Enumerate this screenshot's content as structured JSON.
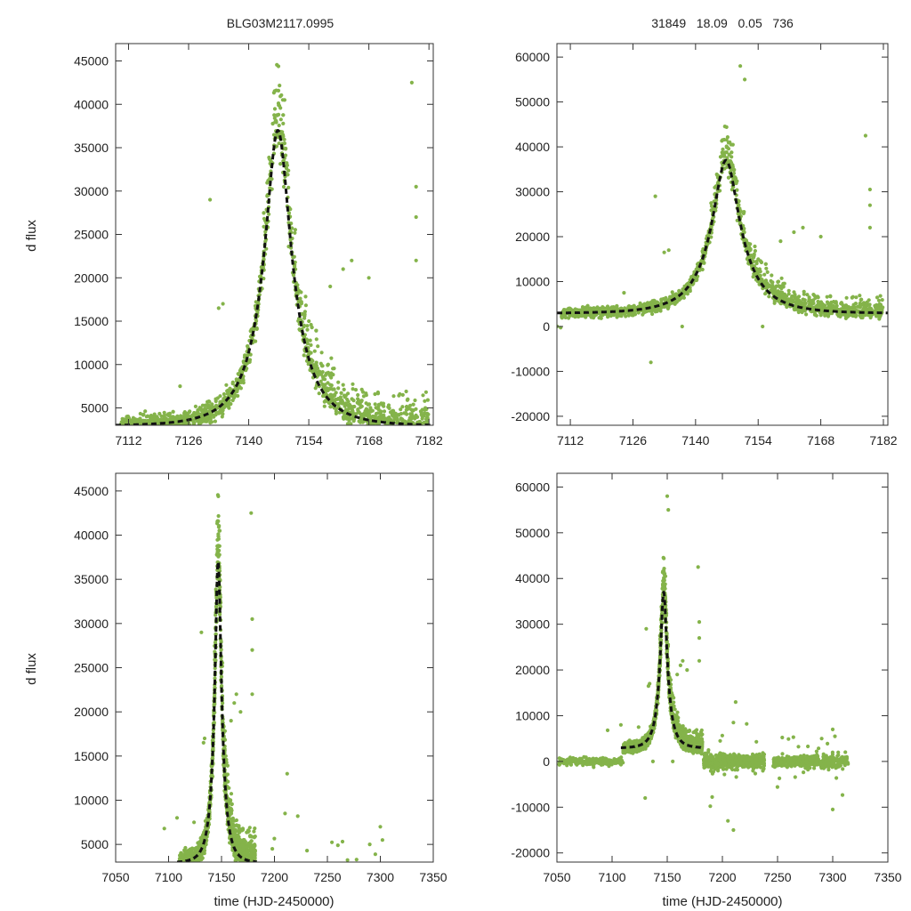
{
  "figure": {
    "title_left": "BLG03M2117.0995",
    "title_right": "31849   18.09   0.05   736",
    "ylabel": "d flux",
    "xlabel": "time (HJD-2450000)",
    "colors": {
      "data": "#84b34a",
      "model": "#111111",
      "frame": "#333333"
    }
  },
  "chart_data": [
    {
      "type": "scatter",
      "panel": "top-left",
      "title": "BLG03M2117.0995",
      "xlabel": "",
      "ylabel": "d flux",
      "xlim": [
        7109,
        7183
      ],
      "ylim": [
        3000,
        47000
      ],
      "xticks": [
        7112,
        7126,
        7140,
        7154,
        7168,
        7182
      ],
      "yticks": [
        5000,
        10000,
        15000,
        20000,
        25000,
        30000,
        35000,
        40000,
        45000
      ],
      "x_tick_labels": [
        "7112",
        "7126",
        "7140",
        "7154",
        "7168",
        "7182"
      ],
      "y_tick_labels": [
        "5000",
        "10000",
        "15000",
        "20000",
        "25000",
        "30000",
        "35000",
        "40000",
        "45000"
      ],
      "series": [
        {
          "name": "data",
          "kind": "points",
          "color": "#84b34a"
        },
        {
          "name": "model",
          "kind": "dashed-line",
          "color": "#111111",
          "model": {
            "t0": 7146.8,
            "tE": 10,
            "u0": 0.3,
            "f_base": 2900,
            "peak": 37000
          }
        }
      ]
    },
    {
      "type": "scatter",
      "panel": "top-right",
      "title": "31849   18.09   0.05   736",
      "xlabel": "",
      "ylabel": "",
      "xlim": [
        7109,
        7183
      ],
      "ylim": [
        -22000,
        63000
      ],
      "xticks": [
        7112,
        7126,
        7140,
        7154,
        7168,
        7182
      ],
      "yticks": [
        -20000,
        -10000,
        0,
        10000,
        20000,
        30000,
        40000,
        50000,
        60000
      ],
      "x_tick_labels": [
        "7112",
        "7126",
        "7140",
        "7154",
        "7168",
        "7182"
      ],
      "y_tick_labels": [
        "-20000",
        "-10000",
        "0",
        "10000",
        "20000",
        "30000",
        "40000",
        "50000",
        "60000"
      ],
      "series": [
        {
          "name": "data",
          "kind": "points",
          "color": "#84b34a"
        },
        {
          "name": "model",
          "kind": "dashed-line",
          "color": "#111111",
          "model": {
            "t0": 7146.8,
            "tE": 10,
            "u0": 0.3,
            "f_base": 2900,
            "peak": 37000
          }
        }
      ]
    },
    {
      "type": "scatter",
      "panel": "bottom-left",
      "title": "",
      "xlabel": "time (HJD-2450000)",
      "ylabel": "d flux",
      "xlim": [
        7050,
        7350
      ],
      "ylim": [
        3000,
        47000
      ],
      "xticks": [
        7050,
        7100,
        7150,
        7200,
        7250,
        7300,
        7350
      ],
      "yticks": [
        5000,
        10000,
        15000,
        20000,
        25000,
        30000,
        35000,
        40000,
        45000
      ],
      "x_tick_labels": [
        "7050",
        "7100",
        "7150",
        "7200",
        "7250",
        "7300",
        "7350"
      ],
      "y_tick_labels": [
        "5000",
        "10000",
        "15000",
        "20000",
        "25000",
        "30000",
        "35000",
        "40000",
        "45000"
      ],
      "series": [
        {
          "name": "data",
          "kind": "points",
          "color": "#84b34a"
        },
        {
          "name": "model",
          "kind": "dashed-line",
          "color": "#111111",
          "model": {
            "t0": 7146.8,
            "tE": 10,
            "u0": 0.3,
            "f_base": 2900,
            "peak": 37000
          }
        }
      ]
    },
    {
      "type": "scatter",
      "panel": "bottom-right",
      "title": "",
      "xlabel": "time (HJD-2450000)",
      "ylabel": "",
      "xlim": [
        7050,
        7350
      ],
      "ylim": [
        -22000,
        63000
      ],
      "xticks": [
        7050,
        7100,
        7150,
        7200,
        7250,
        7300,
        7350
      ],
      "yticks": [
        -20000,
        -10000,
        0,
        10000,
        20000,
        30000,
        40000,
        50000,
        60000
      ],
      "x_tick_labels": [
        "7050",
        "7100",
        "7150",
        "7200",
        "7250",
        "7300",
        "7350"
      ],
      "y_tick_labels": [
        "-20000",
        "-10000",
        "0",
        "10000",
        "20000",
        "30000",
        "40000",
        "50000",
        "60000"
      ],
      "series": [
        {
          "name": "data",
          "kind": "points",
          "color": "#84b34a"
        },
        {
          "name": "model",
          "kind": "dashed-line",
          "color": "#111111",
          "model": {
            "t0": 7146.8,
            "tE": 10,
            "u0": 0.3,
            "f_base": 2900,
            "peak": 37000
          }
        }
      ]
    }
  ]
}
